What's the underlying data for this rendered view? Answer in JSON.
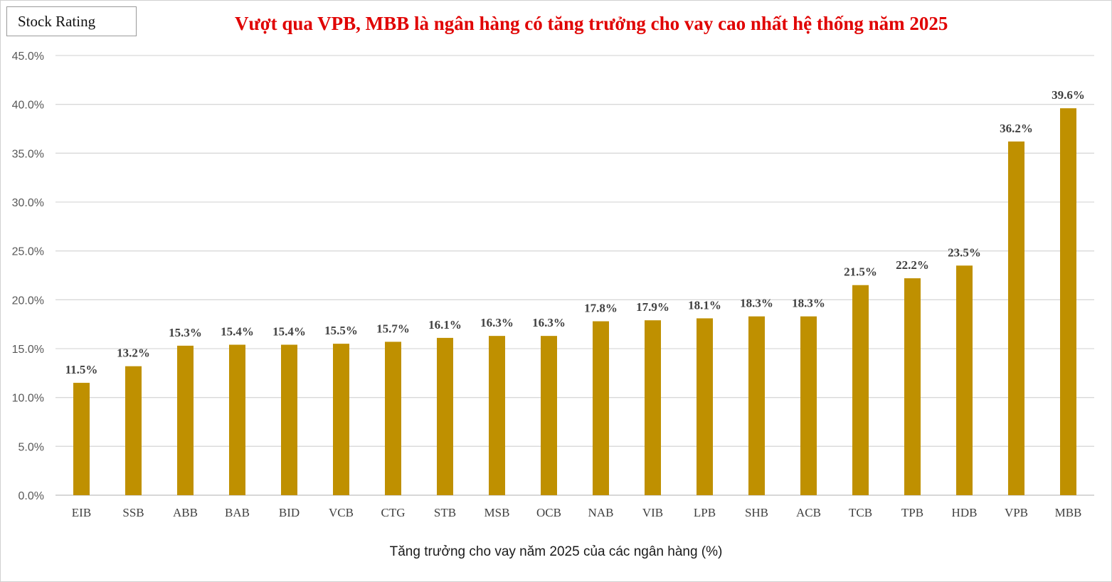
{
  "brand": {
    "label": "Stock Rating"
  },
  "colors": {
    "bar": "#BF9000",
    "title": "#E00000",
    "grid": "#D9D9D9"
  },
  "chart_data": {
    "type": "bar",
    "title": "Vượt qua VPB, MBB là ngân hàng có tăng trưởng cho vay cao nhất hệ thống năm 2025",
    "xlabel": "Tăng trưởng cho vay năm 2025 của các ngân hàng (%)",
    "ylabel": "",
    "ylim": [
      0,
      45
    ],
    "yticks": [
      "0.0%",
      "5.0%",
      "10.0%",
      "15.0%",
      "20.0%",
      "25.0%",
      "30.0%",
      "35.0%",
      "40.0%",
      "45.0%"
    ],
    "grid": true,
    "legend": "none",
    "categories": [
      "EIB",
      "SSB",
      "ABB",
      "BAB",
      "BID",
      "VCB",
      "CTG",
      "STB",
      "MSB",
      "OCB",
      "NAB",
      "VIB",
      "LPB",
      "SHB",
      "ACB",
      "TCB",
      "TPB",
      "HDB",
      "VPB",
      "MBB"
    ],
    "values": [
      11.5,
      13.2,
      15.3,
      15.4,
      15.4,
      15.5,
      15.7,
      16.1,
      16.3,
      16.3,
      17.8,
      17.9,
      18.1,
      18.3,
      18.3,
      21.5,
      22.2,
      23.5,
      36.2,
      39.6
    ],
    "data_labels": [
      "11.5%",
      "13.2%",
      "15.3%",
      "15.4%",
      "15.4%",
      "15.5%",
      "15.7%",
      "16.1%",
      "16.3%",
      "16.3%",
      "17.8%",
      "17.9%",
      "18.1%",
      "18.3%",
      "18.3%",
      "21.5%",
      "22.2%",
      "23.5%",
      "36.2%",
      "39.6%"
    ]
  }
}
